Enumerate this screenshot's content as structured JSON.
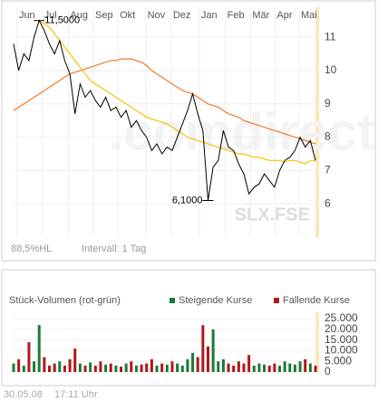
{
  "chart_data": [
    {
      "type": "line",
      "xlim": [
        0,
        59
      ],
      "xticks": [
        {
          "value": 0.7,
          "label": "Jun"
        },
        {
          "value": 5.6,
          "label": "Jul"
        },
        {
          "value": 10.7,
          "label": "Aug"
        },
        {
          "value": 15.6,
          "label": "Sep"
        },
        {
          "value": 20.4,
          "label": "Okt"
        },
        {
          "value": 25.8,
          "label": "Nov"
        },
        {
          "value": 30.8,
          "label": "Dez"
        },
        {
          "value": 36.3,
          "label": "Jan"
        },
        {
          "value": 41.4,
          "label": "Feb"
        },
        {
          "value": 46.3,
          "label": "Mär"
        },
        {
          "value": 51.1,
          "label": "Apr"
        },
        {
          "value": 55.8,
          "label": "Mai"
        }
      ],
      "ylim": [
        5,
        11.9
      ],
      "yticks": [
        6,
        7,
        8,
        9,
        10,
        11
      ],
      "grid": true,
      "max_label": "11,5000",
      "min_label": "6,1000",
      "watermark": ".comdirect",
      "symbol": "SLX.FSE",
      "range_info": "88,5%HL",
      "interval": "Intervall: 1 Tag",
      "series": [
        {
          "color": "#000000",
          "values": [
            10.8,
            10.0,
            10.5,
            10.3,
            11.0,
            11.5,
            11.2,
            10.8,
            10.5,
            10.9,
            10.3,
            9.9,
            8.7,
            9.6,
            9.2,
            9.4,
            9.1,
            8.9,
            9.2,
            8.8,
            8.9,
            8.6,
            8.8,
            8.3,
            8.5,
            8.2,
            8.0,
            7.6,
            7.8,
            7.5,
            7.7,
            7.6,
            8.0,
            8.4,
            8.8,
            9.3,
            8.7,
            8.2,
            6.1,
            7.1,
            7.3,
            8.2,
            7.7,
            7.6,
            7.2,
            6.9,
            6.3,
            6.5,
            6.6,
            6.9,
            6.7,
            6.5,
            7.0,
            7.3,
            7.4,
            7.6,
            8.0,
            7.7,
            7.9,
            7.3
          ]
        },
        {
          "color": "#f07a2a",
          "values": [
            8.8,
            8.9,
            9.0,
            9.1,
            9.2,
            9.3,
            9.4,
            9.5,
            9.6,
            9.7,
            9.8,
            9.9,
            9.95,
            10.0,
            10.05,
            10.1,
            10.15,
            10.2,
            10.25,
            10.3,
            10.3,
            10.35,
            10.35,
            10.35,
            10.3,
            10.25,
            10.15,
            10.0,
            9.9,
            9.8,
            9.7,
            9.6,
            9.5,
            9.4,
            9.35,
            9.3,
            9.2,
            9.1,
            9.0,
            8.95,
            8.9,
            8.8,
            8.7,
            8.65,
            8.6,
            8.5,
            8.45,
            8.4,
            8.35,
            8.3,
            8.25,
            8.2,
            8.15,
            8.1,
            8.05,
            8.0,
            7.95,
            7.9,
            7.85,
            7.8
          ]
        },
        {
          "color": "#f5c400",
          "values": [
            null,
            null,
            null,
            null,
            null,
            11.5,
            11.4,
            11.3,
            11.1,
            10.9,
            10.7,
            10.5,
            10.3,
            10.1,
            9.9,
            9.7,
            9.6,
            9.5,
            9.4,
            9.3,
            9.2,
            9.1,
            9.0,
            8.9,
            8.8,
            8.7,
            8.6,
            8.55,
            8.5,
            8.45,
            8.4,
            8.3,
            8.2,
            8.1,
            8.0,
            7.95,
            7.9,
            7.85,
            7.8,
            7.75,
            7.7,
            7.65,
            7.6,
            7.55,
            7.5,
            7.5,
            7.45,
            7.4,
            7.4,
            7.35,
            7.3,
            7.3,
            7.3,
            7.25,
            7.3,
            7.3,
            7.25,
            7.2,
            7.3,
            7.3
          ]
        }
      ]
    },
    {
      "type": "bar",
      "title": "Stück-Volumen (rot-grün)",
      "xlim": [
        0,
        59
      ],
      "ylim": [
        0,
        28000
      ],
      "yticks": [
        {
          "value": 25000,
          "label": "25.000"
        },
        {
          "value": 20000,
          "label": "20.000"
        },
        {
          "value": 15000,
          "label": "15.000"
        },
        {
          "value": 10000,
          "label": "10.000"
        },
        {
          "value": 5000,
          "label": "5.000"
        },
        0
      ],
      "series": [
        {
          "name": "Steigende Kurse",
          "color": "#1a7a3a",
          "values": [
            4000,
            null,
            3000,
            null,
            5000,
            22000,
            null,
            null,
            null,
            5000,
            null,
            null,
            null,
            4000,
            null,
            4500,
            null,
            null,
            3500,
            null,
            3000,
            null,
            4000,
            null,
            3000,
            null,
            null,
            null,
            3000,
            null,
            3500,
            null,
            4000,
            3000,
            6000,
            9000,
            null,
            null,
            null,
            20000,
            5000,
            6000,
            null,
            null,
            null,
            null,
            null,
            3000,
            4000,
            3500,
            null,
            null,
            3000,
            5000,
            4000,
            3500,
            5000,
            null,
            4000,
            null
          ]
        },
        {
          "name": "Fallende Kurse",
          "color": "#b01818",
          "values": [
            null,
            6000,
            null,
            14000,
            null,
            null,
            7000,
            3000,
            4000,
            null,
            3000,
            6000,
            11000,
            null,
            3000,
            null,
            3000,
            5000,
            null,
            4000,
            null,
            2500,
            null,
            5000,
            null,
            3500,
            4000,
            6000,
            null,
            4000,
            null,
            5000,
            null,
            null,
            null,
            null,
            7000,
            22000,
            12000,
            null,
            null,
            null,
            4000,
            3000,
            5000,
            4000,
            8000,
            null,
            null,
            null,
            3000,
            4000,
            null,
            null,
            null,
            null,
            null,
            6000,
            null,
            3000
          ]
        }
      ]
    }
  ],
  "footer": {
    "date": "30.05.08",
    "time": "17:11 Uhr"
  }
}
